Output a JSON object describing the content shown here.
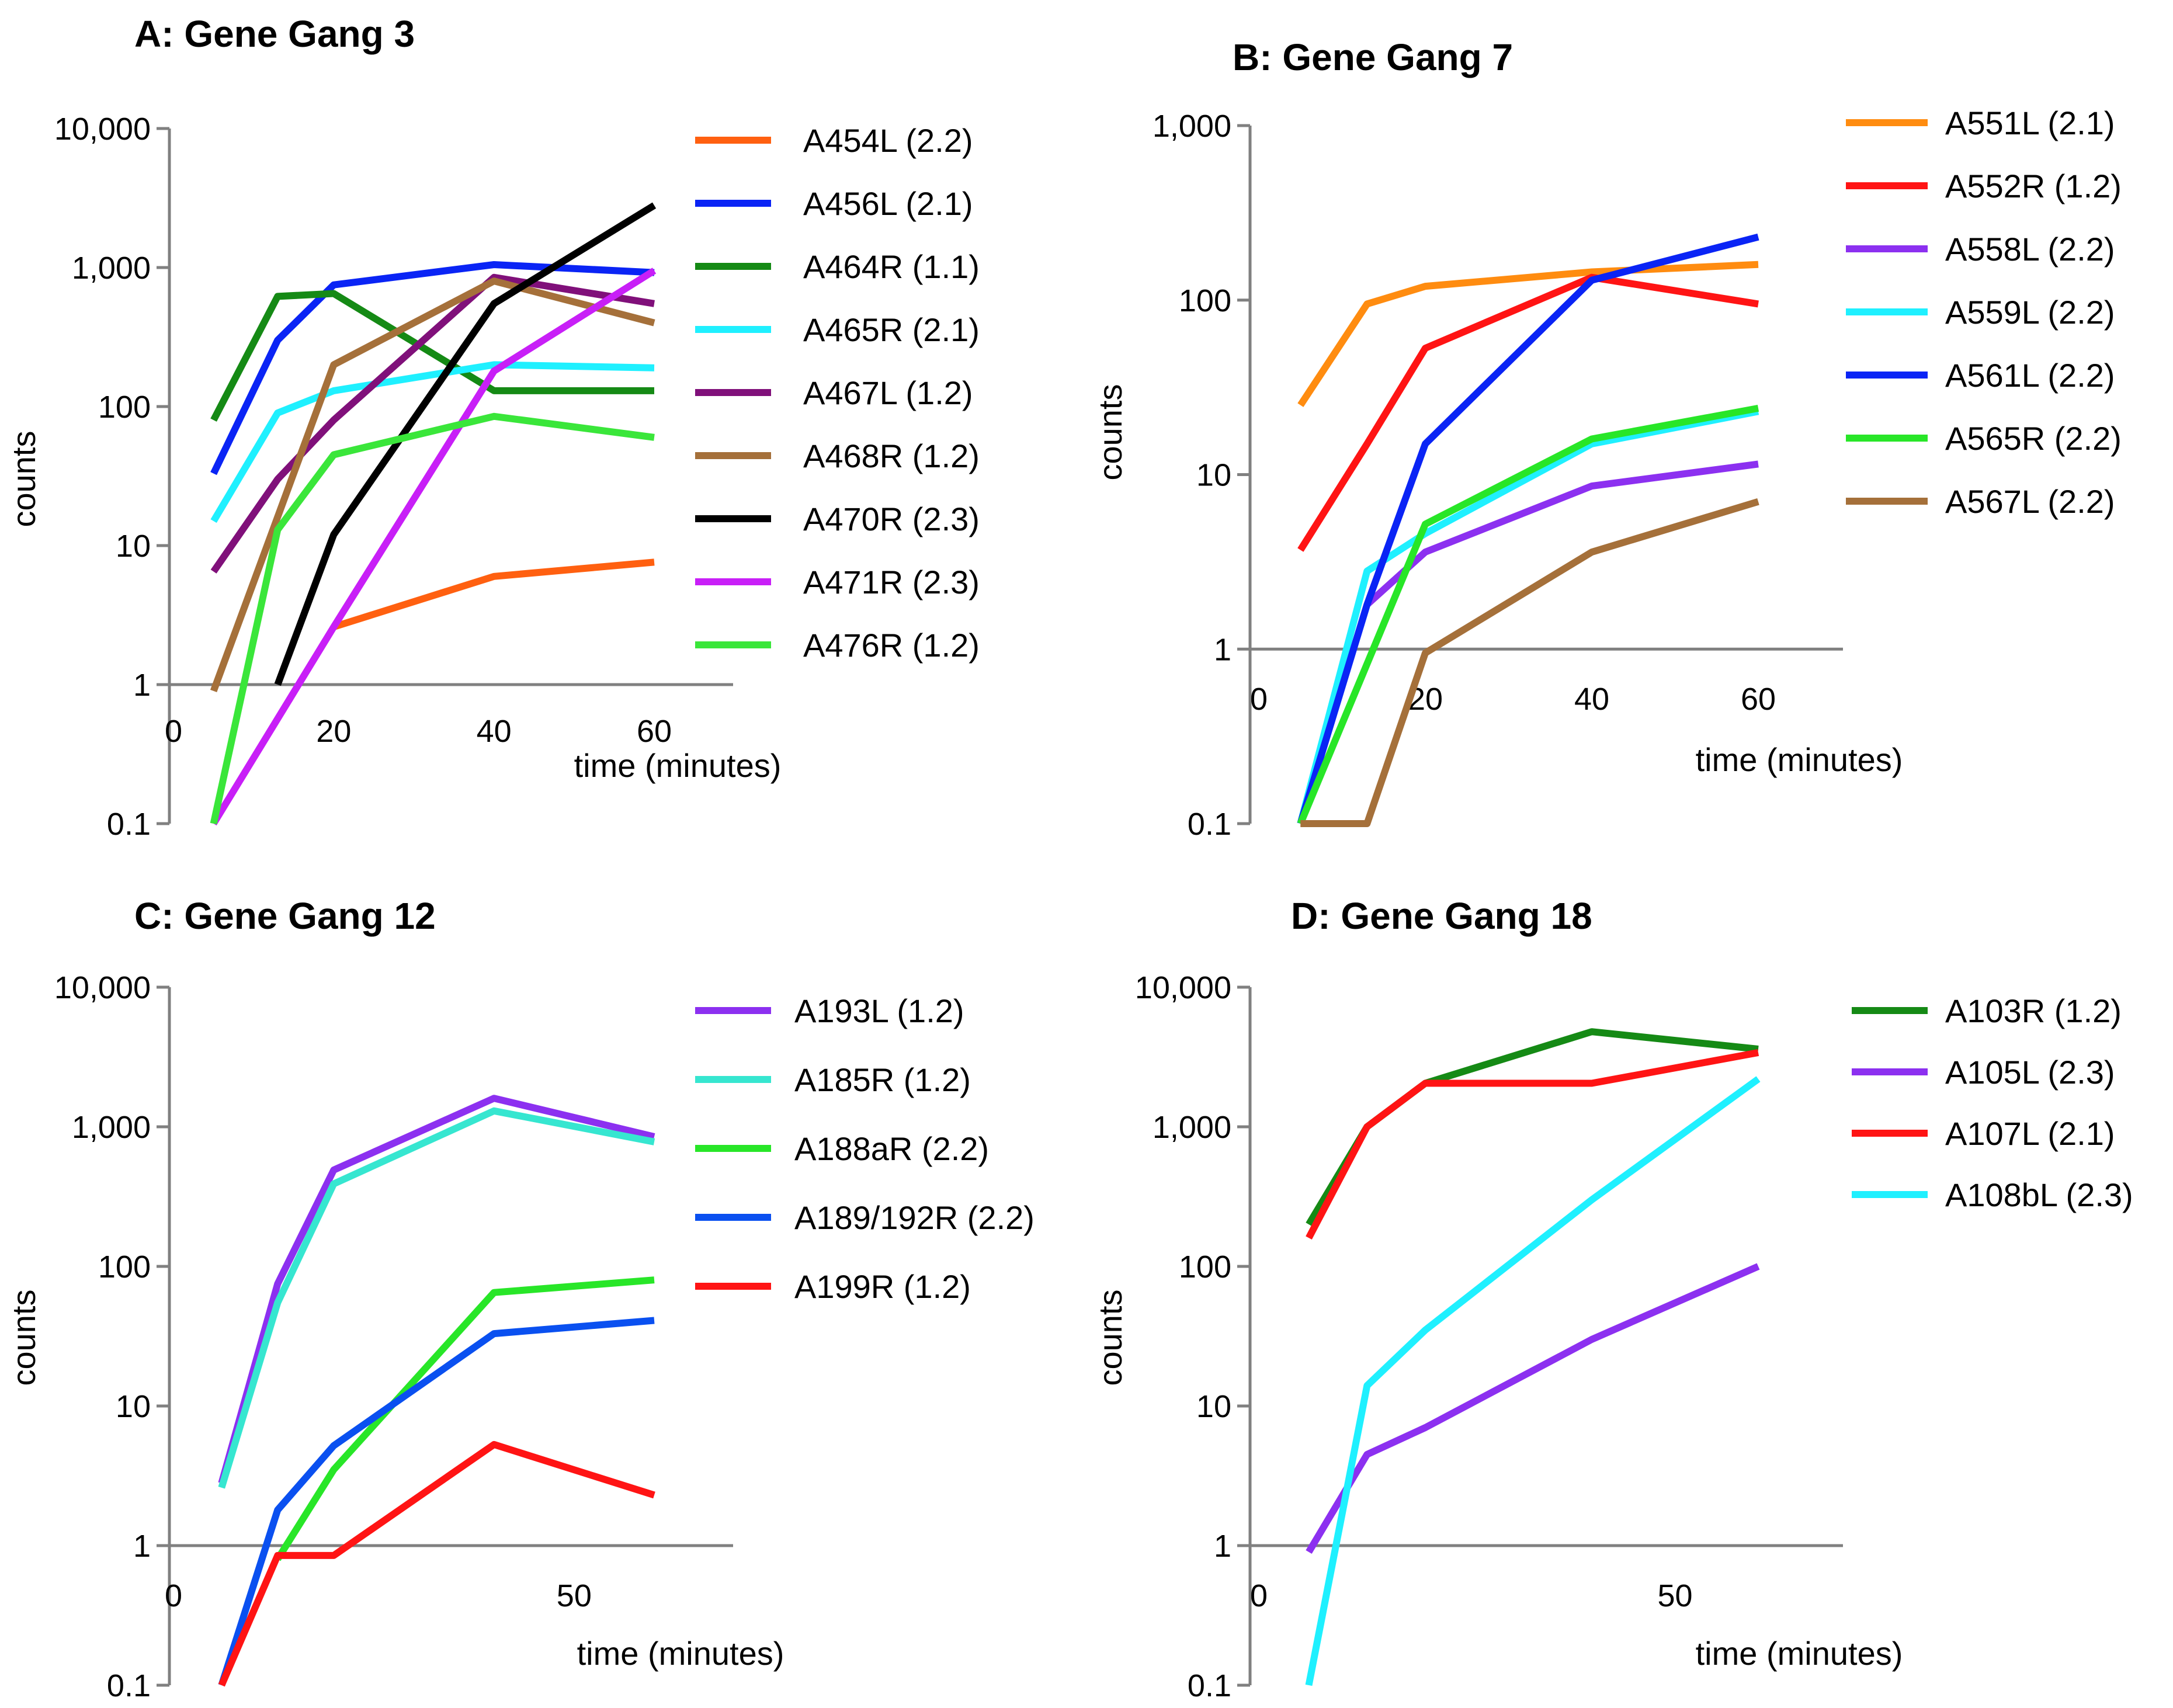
{
  "chart_data": [
    {
      "type": "line",
      "title": "A: Gene Gang 3",
      "xlabel": "time (minutes)",
      "ylabel": "counts",
      "yscale": "log",
      "ylim": [
        0.1,
        10000
      ],
      "xlim": [
        0,
        70
      ],
      "yticks": [
        0.1,
        1,
        10,
        100,
        1000,
        10000
      ],
      "ytick_labels": [
        "0.1",
        "1",
        "10",
        "100",
        "1,000",
        "10,000"
      ],
      "xticks": [
        0,
        20,
        40,
        60
      ],
      "xtick_labels": [
        "0",
        "20",
        "40",
        "60"
      ],
      "legend_position": "right",
      "x": [
        5,
        15,
        20,
        40,
        60
      ],
      "series": [
        {
          "name": "A454L (2.2)",
          "color": "#ff6010",
          "x": [
            20,
            40,
            60
          ],
          "values": [
            2.6,
            6,
            7.6
          ]
        },
        {
          "name": "A456L (2.1)",
          "color": "#0a24f5",
          "x": [
            5,
            13,
            20,
            40,
            60
          ],
          "values": [
            33,
            300,
            750,
            1050,
            920
          ]
        },
        {
          "name": "A464R (1.1)",
          "color": "#158a15",
          "x": [
            5,
            13,
            20,
            40,
            60
          ],
          "values": [
            80,
            620,
            650,
            130,
            130
          ]
        },
        {
          "name": "A465R (2.1)",
          "color": "#1ff0ff",
          "x": [
            5,
            13,
            20,
            40,
            60
          ],
          "values": [
            15,
            90,
            130,
            200,
            190
          ]
        },
        {
          "name": "A467L (1.2)",
          "color": "#80107a",
          "x": [
            5,
            13,
            20,
            40,
            60
          ],
          "values": [
            6.5,
            30,
            80,
            850,
            550
          ]
        },
        {
          "name": "A468R (1.2)",
          "color": "#a5703a",
          "x": [
            5,
            20,
            40,
            60
          ],
          "values": [
            0.9,
            200,
            800,
            400
          ]
        },
        {
          "name": "A470R (2.3)",
          "color": "#000000",
          "x": [
            13,
            20,
            40,
            60
          ],
          "values": [
            1,
            12,
            550,
            2800
          ]
        },
        {
          "name": "A471R (2.3)",
          "color": "#c81ff7",
          "x": [
            5,
            20,
            40,
            60
          ],
          "values": [
            0.1,
            2.6,
            180,
            950
          ]
        },
        {
          "name": "A476R (1.2)",
          "color": "#3ae63a",
          "x": [
            5,
            13,
            20,
            40,
            60
          ],
          "values": [
            0.1,
            13,
            45,
            85,
            60
          ]
        }
      ]
    },
    {
      "type": "line",
      "title": "B: Gene Gang 7",
      "xlabel": "time (minutes)",
      "ylabel": "counts",
      "yscale": "log",
      "ylim": [
        0.1,
        1000
      ],
      "xlim": [
        0,
        70
      ],
      "yticks": [
        0.1,
        1,
        10,
        100,
        1000
      ],
      "ytick_labels": [
        "0.1",
        "1",
        "10",
        "100",
        "1,000"
      ],
      "xticks": [
        0,
        20,
        40,
        60
      ],
      "xtick_labels": [
        "0",
        "20",
        "40",
        "60"
      ],
      "legend_position": "right",
      "series": [
        {
          "name": "A551L (2.1)",
          "color": "#ff8c10",
          "x": [
            5,
            13,
            20,
            40,
            60
          ],
          "values": [
            25,
            95,
            120,
            145,
            160
          ]
        },
        {
          "name": "A552R (1.2)",
          "color": "#ff1414",
          "x": [
            5,
            13,
            20,
            40,
            60
          ],
          "values": [
            3.7,
            15,
            53,
            135,
            95
          ]
        },
        {
          "name": "A558L (2.2)",
          "color": "#8c30f0",
          "x": [
            13,
            20,
            40,
            60
          ],
          "values": [
            1.8,
            3.6,
            8.6,
            11.5
          ]
        },
        {
          "name": "A559L (2.2)",
          "color": "#1ff0ff",
          "x": [
            5,
            13,
            20,
            40,
            60
          ],
          "values": [
            0.1,
            2.8,
            4.6,
            15,
            23
          ]
        },
        {
          "name": "A561L (2.2)",
          "color": "#0a24f5",
          "x": [
            5,
            13,
            20,
            40,
            60
          ],
          "values": [
            0.1,
            1.8,
            15,
            130,
            230
          ]
        },
        {
          "name": "A565R (2.2)",
          "color": "#28e628",
          "x": [
            5,
            20,
            40,
            60
          ],
          "values": [
            0.1,
            5.2,
            16,
            24
          ]
        },
        {
          "name": "A567L (2.2)",
          "color": "#a5703a",
          "x": [
            5,
            13,
            20,
            40,
            60
          ],
          "values": [
            0.1,
            0.1,
            0.95,
            3.6,
            7
          ]
        }
      ]
    },
    {
      "type": "line",
      "title": "C: Gene Gang 12",
      "xlabel": "time (minutes)",
      "ylabel": "counts",
      "yscale": "log",
      "ylim": [
        0.1,
        10000
      ],
      "xlim": [
        0,
        70
      ],
      "yticks": [
        0.1,
        1,
        10,
        100,
        1000,
        10000
      ],
      "ytick_labels": [
        "0.1",
        "1",
        "10",
        "100",
        "1,000",
        "10,000"
      ],
      "xticks": [
        0,
        50
      ],
      "xtick_labels": [
        "0",
        "50"
      ],
      "legend_position": "right",
      "series": [
        {
          "name": "A193L (1.2)",
          "color": "#8c30f0",
          "x": [
            6,
            13,
            20,
            40,
            60
          ],
          "values": [
            2.8,
            75,
            490,
            1600,
            850
          ]
        },
        {
          "name": "A185R (1.2)",
          "color": "#36e6d0",
          "x": [
            6,
            13,
            20,
            40,
            60
          ],
          "values": [
            2.6,
            55,
            390,
            1300,
            780
          ]
        },
        {
          "name": "A188aR (2.2)",
          "color": "#28e628",
          "x": [
            13,
            20,
            40,
            60
          ],
          "values": [
            0.8,
            3.5,
            65,
            80
          ]
        },
        {
          "name": "A189/192R (2.2)",
          "color": "#0a50f0",
          "x": [
            6,
            13,
            20,
            40,
            60
          ],
          "values": [
            0.1,
            1.8,
            5.2,
            33,
            41
          ]
        },
        {
          "name": "A199R (1.2)",
          "color": "#ff1414",
          "x": [
            6,
            13,
            20,
            40,
            60
          ],
          "values": [
            0.1,
            0.85,
            0.85,
            5.3,
            2.3
          ]
        }
      ]
    },
    {
      "type": "line",
      "title": "D: Gene Gang 18",
      "xlabel": "time (minutes)",
      "ylabel": "counts",
      "yscale": "log",
      "ylim": [
        0.1,
        10000
      ],
      "xlim": [
        0,
        70
      ],
      "yticks": [
        0.1,
        1,
        10,
        100,
        1000,
        10000
      ],
      "ytick_labels": [
        "0.1",
        "1",
        "10",
        "100",
        "1,000",
        "10,000"
      ],
      "xticks": [
        0,
        50
      ],
      "xtick_labels": [
        "0",
        "50"
      ],
      "legend_position": "right",
      "series": [
        {
          "name": "A103R (1.2)",
          "color": "#158a15",
          "x": [
            6,
            13,
            20,
            40,
            60
          ],
          "values": [
            200,
            1000,
            2050,
            4800,
            3600
          ]
        },
        {
          "name": "A105L (2.3)",
          "color": "#8c30f0",
          "x": [
            6,
            13,
            20,
            40,
            60
          ],
          "values": [
            0.9,
            4.5,
            7,
            30,
            100
          ]
        },
        {
          "name": "A107L (2.1)",
          "color": "#ff1414",
          "x": [
            6,
            13,
            20,
            40,
            60
          ],
          "values": [
            160,
            1000,
            2050,
            2050,
            3400
          ]
        },
        {
          "name": "A108bL (2.3)",
          "color": "#1ff0ff",
          "x": [
            6,
            13,
            20,
            40,
            60
          ],
          "values": [
            0.1,
            14,
            35,
            300,
            2200
          ]
        }
      ]
    }
  ]
}
